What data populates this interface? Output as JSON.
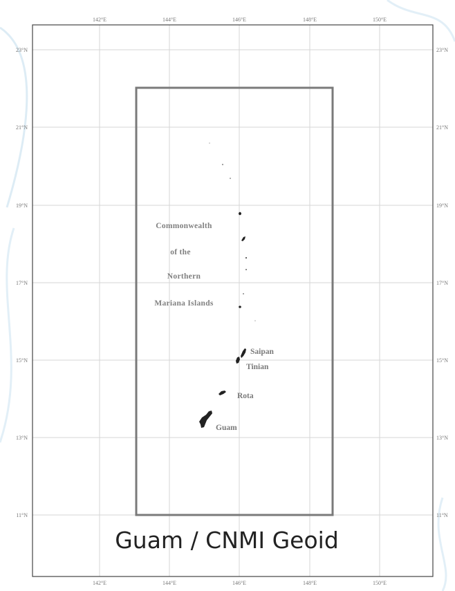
{
  "caption": "Guam / CNMI Geoid",
  "map": {
    "lon_ticks": [
      "142°E",
      "144°E",
      "146°E",
      "148°E",
      "150°E"
    ],
    "lat_ticks": [
      "23°N",
      "21°N",
      "19°N",
      "17°N",
      "15°N",
      "13°N",
      "11°N"
    ],
    "region_label_lines": [
      "Commonwealth",
      "of the",
      "Northern",
      "Mariana Islands"
    ],
    "islands": [
      {
        "name": "Saipan"
      },
      {
        "name": "Tinian"
      },
      {
        "name": "Rota"
      },
      {
        "name": "Guam"
      }
    ]
  },
  "colors": {
    "background": "#ffffff",
    "background_decor": "#cfe4f1",
    "frame": "#444444",
    "bounding_box": "#7a7a7a",
    "graticule": "#d6d6d6",
    "land": "#222222",
    "caption_text": "#222222"
  }
}
